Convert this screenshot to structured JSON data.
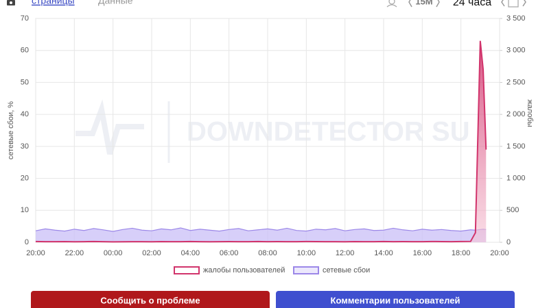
{
  "header": {
    "tabs": [
      "страницы",
      "Данные"
    ],
    "interval": "15M",
    "period": "24 часа"
  },
  "chart_data": {
    "type": "area",
    "watermark": "DOWNDETECTOR SU",
    "ylabel": "сетевые сбои, %",
    "y2label": "жалобы",
    "x": [
      0,
      0.5,
      1,
      1.5,
      2,
      2.5,
      3,
      3.5,
      4,
      4.5,
      5,
      5.5,
      6,
      6.5,
      7,
      7.5,
      8,
      8.5,
      9,
      9.5,
      10,
      10.5,
      11,
      11.5,
      12,
      12.5,
      13,
      13.5,
      14,
      14.5,
      15,
      15.5,
      16,
      16.5,
      17,
      17.5,
      18,
      18.5,
      19,
      19.5,
      20,
      20.5,
      21,
      21.5,
      22,
      22.5,
      22.75,
      23,
      23.15,
      23.3
    ],
    "xlim": [
      0,
      24
    ],
    "xticks": [
      {
        "value": 0,
        "label": "20:00"
      },
      {
        "value": 2,
        "label": "22:00"
      },
      {
        "value": 4,
        "label": "00:00"
      },
      {
        "value": 6,
        "label": "02:00"
      },
      {
        "value": 8,
        "label": "04:00"
      },
      {
        "value": 10,
        "label": "06:00"
      },
      {
        "value": 12,
        "label": "08:00"
      },
      {
        "value": 14,
        "label": "10:00"
      },
      {
        "value": 16,
        "label": "12:00"
      },
      {
        "value": 18,
        "label": "14:00"
      },
      {
        "value": 20,
        "label": "16:00"
      },
      {
        "value": 22,
        "label": "18:00"
      },
      {
        "value": 24,
        "label": "20:00"
      }
    ],
    "ylim": [
      0,
      70
    ],
    "yticks": [
      0,
      10,
      20,
      30,
      40,
      50,
      60,
      70
    ],
    "y2lim": [
      0,
      3500
    ],
    "y2ticks": [
      0,
      500,
      {
        "value": 1000,
        "label": "1 000"
      },
      {
        "value": 1500,
        "label": "1 500"
      },
      {
        "value": 2000,
        "label": "2 000"
      },
      {
        "value": 2500,
        "label": "2 500"
      },
      {
        "value": 3000,
        "label": "3 000"
      },
      {
        "value": 3500,
        "label": "3 500"
      }
    ],
    "grid": true,
    "series": [
      {
        "name": "жалобы пользователей",
        "color": "#d1336b",
        "axis": "y2",
        "values": [
          12,
          10,
          9,
          11,
          8,
          10,
          12,
          9,
          7,
          8,
          10,
          9,
          8,
          11,
          10,
          9,
          12,
          10,
          8,
          9,
          11,
          10,
          9,
          12,
          10,
          11,
          9,
          10,
          12,
          11,
          9,
          10,
          8,
          11,
          10,
          9,
          12,
          10,
          11,
          9,
          10,
          12,
          11,
          10,
          12,
          14,
          150,
          3150,
          2700,
          1450
        ]
      },
      {
        "name": "сетевые сбои",
        "color": "#9b87e8",
        "axis": "y",
        "values": [
          3.6,
          4.2,
          3.8,
          3.5,
          4.1,
          3.7,
          4.3,
          3.9,
          3.4,
          4.0,
          4.4,
          3.8,
          3.6,
          4.2,
          3.9,
          4.5,
          3.7,
          4.1,
          3.8,
          3.5,
          4.0,
          4.3,
          3.6,
          3.9,
          4.2,
          3.8,
          4.4,
          3.7,
          3.5,
          4.1,
          3.9,
          4.3,
          3.6,
          4.0,
          4.2,
          3.7,
          3.8,
          4.4,
          3.9,
          3.6,
          4.1,
          3.8,
          4.0,
          3.7,
          3.5,
          3.9,
          3.8,
          4.0,
          4.1,
          4.0
        ]
      }
    ]
  },
  "buttons": [
    "Сообщить о проблеме",
    "Комментарии пользователей"
  ]
}
